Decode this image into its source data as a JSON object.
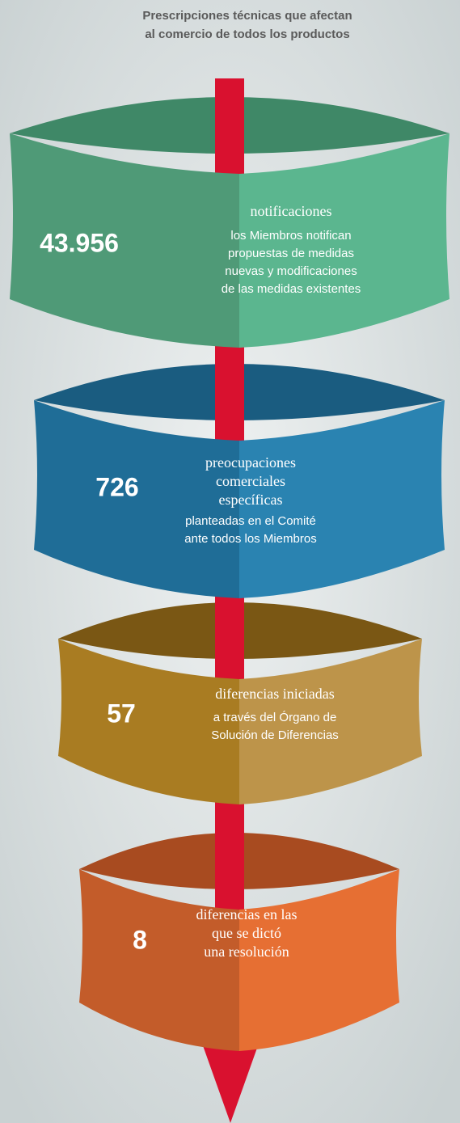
{
  "title": [
    "Prescripciones técnicas que afectan",
    "al comercio de todos los productos"
  ],
  "stages": [
    {
      "value": "43.956",
      "label": [
        "notificaciones"
      ],
      "description": [
        "los Miembros notifican",
        "propuestas de medidas",
        "nuevas y modificaciones",
        "de las medidas existentes"
      ]
    },
    {
      "value": "726",
      "label": [
        "preocupaciones",
        "comerciales",
        "específicas"
      ],
      "description": [
        "planteadas en el Comité",
        "ante todos los Miembros"
      ]
    },
    {
      "value": "57",
      "label": [
        "diferencias iniciadas"
      ],
      "description": [
        "a través del Órgano de",
        "Solución de Diferencias"
      ]
    },
    {
      "value": "8",
      "label": [
        "diferencias en las",
        "que se dictó",
        "una resolución"
      ],
      "description": []
    }
  ]
}
